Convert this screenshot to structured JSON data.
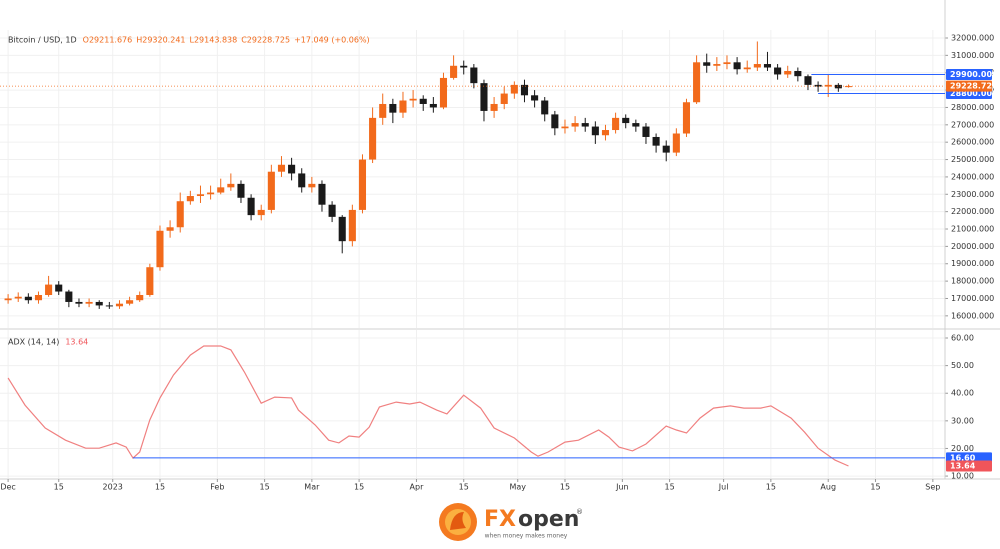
{
  "chart_data": [
    {
      "type": "candlestick",
      "title": "Bitcoin / USD, 1D",
      "ohlc_legend": [
        "O29211.676",
        "H29320.241",
        "L29143.838",
        "C29228.725",
        "+17.049 (+0.06%)"
      ],
      "up_color": "#f26a1b",
      "down_color": "#1a1a1a",
      "grid": true,
      "x": [
        0,
        3,
        6,
        9,
        12,
        15,
        18,
        21,
        24,
        27,
        30,
        33,
        36,
        39,
        42,
        45,
        48,
        51,
        54,
        57,
        60,
        63,
        66,
        69,
        72,
        75,
        78,
        81,
        84,
        87,
        90,
        93,
        96,
        99,
        102,
        105,
        108,
        111,
        114,
        117,
        120,
        123,
        126,
        129,
        132,
        135,
        138,
        141,
        144,
        147,
        150,
        153,
        156,
        159,
        162,
        165,
        168,
        171,
        174,
        177,
        180,
        183,
        186,
        189,
        192,
        195,
        198,
        201,
        204,
        207,
        210,
        213,
        216,
        219,
        222,
        225,
        228,
        231,
        234,
        237,
        240,
        243,
        246,
        249
      ],
      "open": [
        16900,
        17000,
        17100,
        16900,
        17200,
        17800,
        17400,
        16800,
        16700,
        16800,
        16600,
        16550,
        16700,
        16900,
        17200,
        18800,
        20900,
        21100,
        22600,
        22900,
        23000,
        23100,
        23400,
        23600,
        22800,
        21800,
        22100,
        24300,
        24700,
        24200,
        23400,
        23600,
        22400,
        21700,
        20300,
        22100,
        25000,
        27400,
        28200,
        27700,
        28400,
        28500,
        28200,
        28000,
        29700,
        30400,
        30300,
        29400,
        27800,
        28200,
        28800,
        29300,
        28700,
        28400,
        27600,
        26800,
        26900,
        27100,
        26900,
        26400,
        26700,
        27400,
        27100,
        26900,
        26300,
        25800,
        25400,
        26500,
        28300,
        30600,
        30400,
        30500,
        30600,
        30200,
        30300,
        30500,
        30300,
        29900,
        30100,
        29800,
        29300,
        29200,
        29300,
        29211.676
      ],
      "high": [
        17250,
        17350,
        17300,
        17400,
        18300,
        18000,
        17500,
        17000,
        17000,
        16900,
        16800,
        16900,
        17100,
        17400,
        19000,
        21200,
        21500,
        23100,
        23200,
        23500,
        23500,
        23900,
        24200,
        23800,
        23000,
        22400,
        24700,
        25200,
        25100,
        24500,
        24000,
        23800,
        22600,
        21800,
        22400,
        25300,
        28000,
        28800,
        28500,
        28900,
        29000,
        28700,
        28600,
        30000,
        31000,
        30700,
        30500,
        29600,
        28600,
        29200,
        29500,
        29600,
        29000,
        28600,
        27800,
        27300,
        27500,
        27400,
        27200,
        27000,
        27700,
        27600,
        27300,
        27100,
        26500,
        26100,
        26800,
        28500,
        31000,
        31100,
        30900,
        31000,
        30900,
        30700,
        31800,
        31200,
        30500,
        30400,
        30300,
        29900,
        29500,
        29900,
        29400,
        29320.241
      ],
      "low": [
        16700,
        16800,
        16700,
        16700,
        17100,
        17200,
        16500,
        16500,
        16500,
        16400,
        16400,
        16400,
        16600,
        16800,
        17100,
        18600,
        20500,
        20800,
        22400,
        22500,
        22700,
        23000,
        23200,
        22500,
        21500,
        21500,
        21900,
        24000,
        23800,
        23100,
        23100,
        22000,
        21400,
        19600,
        20000,
        21900,
        24800,
        27000,
        27100,
        27400,
        28000,
        27800,
        27700,
        27900,
        29600,
        29900,
        29100,
        27200,
        27400,
        27900,
        28500,
        28300,
        28000,
        27200,
        26400,
        26500,
        26600,
        26600,
        25900,
        26100,
        26500,
        26800,
        26600,
        25900,
        25400,
        24900,
        25200,
        26300,
        28200,
        30000,
        30100,
        30200,
        29900,
        30000,
        30100,
        30100,
        29600,
        29700,
        29500,
        29000,
        28900,
        28600,
        28900,
        29143.838
      ],
      "close": [
        17000,
        17100,
        16900,
        17200,
        17800,
        17400,
        16800,
        16700,
        16800,
        16600,
        16550,
        16700,
        16900,
        17200,
        18800,
        20900,
        21100,
        22600,
        22900,
        23000,
        23100,
        23400,
        23600,
        22800,
        21800,
        22100,
        24300,
        24700,
        24200,
        23400,
        23600,
        22400,
        21700,
        20300,
        22100,
        25000,
        27400,
        28200,
        27700,
        28400,
        28500,
        28200,
        28000,
        29700,
        30400,
        30300,
        29400,
        27800,
        28200,
        28800,
        29300,
        28700,
        28400,
        27600,
        26800,
        26900,
        27100,
        26900,
        26400,
        26700,
        27400,
        27100,
        26900,
        26300,
        25800,
        25400,
        26500,
        28300,
        30600,
        30400,
        30500,
        30600,
        30200,
        30300,
        30500,
        30300,
        29900,
        30100,
        29800,
        29300,
        29200,
        29300,
        29100,
        29228.725
      ],
      "xlim": [
        -2.4,
        277.6
      ],
      "ylim": [
        15300,
        32460
      ],
      "yticks": [
        {
          "value": 16000,
          "label": "16000.000"
        },
        {
          "value": 17000,
          "label": "17000.000"
        },
        {
          "value": 18000,
          "label": "18000.000"
        },
        {
          "value": 19000,
          "label": "19000.000"
        },
        {
          "value": 20000,
          "label": "20000.000"
        },
        {
          "value": 21000,
          "label": "21000.000"
        },
        {
          "value": 22000,
          "label": "22000.000"
        },
        {
          "value": 23000,
          "label": "23000.000"
        },
        {
          "value": 24000,
          "label": "24000.000"
        },
        {
          "value": 25000,
          "label": "25000.000"
        },
        {
          "value": 26000,
          "label": "26000.000"
        },
        {
          "value": 27000,
          "label": "27000.000"
        },
        {
          "value": 28000,
          "label": "28000.000"
        },
        {
          "value": 29000,
          "label": "29000.000"
        },
        {
          "value": 30000,
          "label": "30000.000"
        },
        {
          "value": 31000,
          "label": "31000.000"
        },
        {
          "value": 32000,
          "label": "32000.000"
        }
      ],
      "levels": [
        {
          "value": 29900,
          "label": "29900.000",
          "color": "#2962ff",
          "x_start": 238
        },
        {
          "value": 28800,
          "label": "28800.000",
          "color": "#2962ff",
          "x_start": 240
        }
      ],
      "current": {
        "value": 29228.725,
        "label": "29228.725",
        "color": "#f26a1b"
      }
    },
    {
      "type": "line",
      "title": "ADX (14, 14)",
      "color": "#f08080",
      "grid": true,
      "x": [
        0,
        5,
        11,
        17,
        23,
        27,
        32,
        35,
        37,
        39,
        42,
        45,
        49,
        54,
        58,
        63,
        66,
        70,
        75,
        79,
        84,
        86,
        91,
        95,
        98,
        101,
        104,
        107,
        110,
        115,
        119,
        122,
        127,
        130,
        135,
        140,
        144,
        150,
        155,
        157,
        160,
        165,
        169,
        175,
        178,
        181,
        185,
        189,
        195,
        198,
        201,
        205,
        209,
        214,
        218,
        223,
        226,
        232,
        236,
        240,
        245,
        249
      ],
      "values": [
        45.5,
        35.7,
        27.4,
        23,
        20.1,
        20.1,
        22,
        20.5,
        16.5,
        18.7,
        30.3,
        38.3,
        46.6,
        53.8,
        57.1,
        57.1,
        55.7,
        47.7,
        36.4,
        38.6,
        38.3,
        33.9,
        28.5,
        23,
        22,
        24.5,
        24.1,
        27.7,
        35,
        36.8,
        36.1,
        36.8,
        33.9,
        32.5,
        39.3,
        34.6,
        27.4,
        23.8,
        18.7,
        17.2,
        18.7,
        22.3,
        23,
        26.7,
        24.1,
        20.5,
        19.1,
        21.6,
        28.1,
        26.7,
        25.6,
        31,
        34.6,
        35.4,
        34.6,
        34.6,
        35.4,
        31,
        25.9,
        20.1,
        15.8,
        13.64
      ],
      "xlim": [
        -2.4,
        277.6
      ],
      "ylim": [
        9.3,
        62.9
      ],
      "yticks": [
        {
          "value": 10,
          "label": "10.00"
        },
        {
          "value": 20,
          "label": "20.00"
        },
        {
          "value": 30,
          "label": "30.00"
        },
        {
          "value": 40,
          "label": "40.00"
        },
        {
          "value": 50,
          "label": "50.00"
        },
        {
          "value": 60,
          "label": "60.00"
        }
      ],
      "xticks": [
        {
          "value": 0,
          "label": "Dec"
        },
        15,
        {
          "value": 31,
          "label": "2023"
        },
        {
          "value": 45,
          "label": "15"
        },
        {
          "value": 62,
          "label": "Feb"
        },
        {
          "value": 76,
          "label": "15"
        },
        {
          "value": 90,
          "label": "Mar"
        },
        {
          "value": 104,
          "label": "15"
        },
        {
          "value": 121,
          "label": "Apr"
        },
        {
          "value": 135,
          "label": "15"
        },
        {
          "value": 151,
          "label": "May"
        },
        {
          "value": 165,
          "label": "15"
        },
        {
          "value": 182,
          "label": "Jun"
        },
        {
          "value": 196,
          "label": "15"
        },
        {
          "value": 212,
          "label": "Jul"
        },
        {
          "value": 226,
          "label": "15"
        },
        {
          "value": 243,
          "label": "Aug"
        },
        {
          "value": 257,
          "label": "15"
        },
        {
          "value": 274,
          "label": "Sep"
        }
      ],
      "levels": [
        {
          "value": 16.6,
          "label": "16.60",
          "color": "#2962ff",
          "x_start": 37
        }
      ],
      "current": {
        "value": 13.64,
        "label": "13.64",
        "color": "#f0555a"
      }
    }
  ],
  "brand": {
    "part1": "FX",
    "part2": "open",
    "mark": "®",
    "tagline": "when money makes money"
  }
}
